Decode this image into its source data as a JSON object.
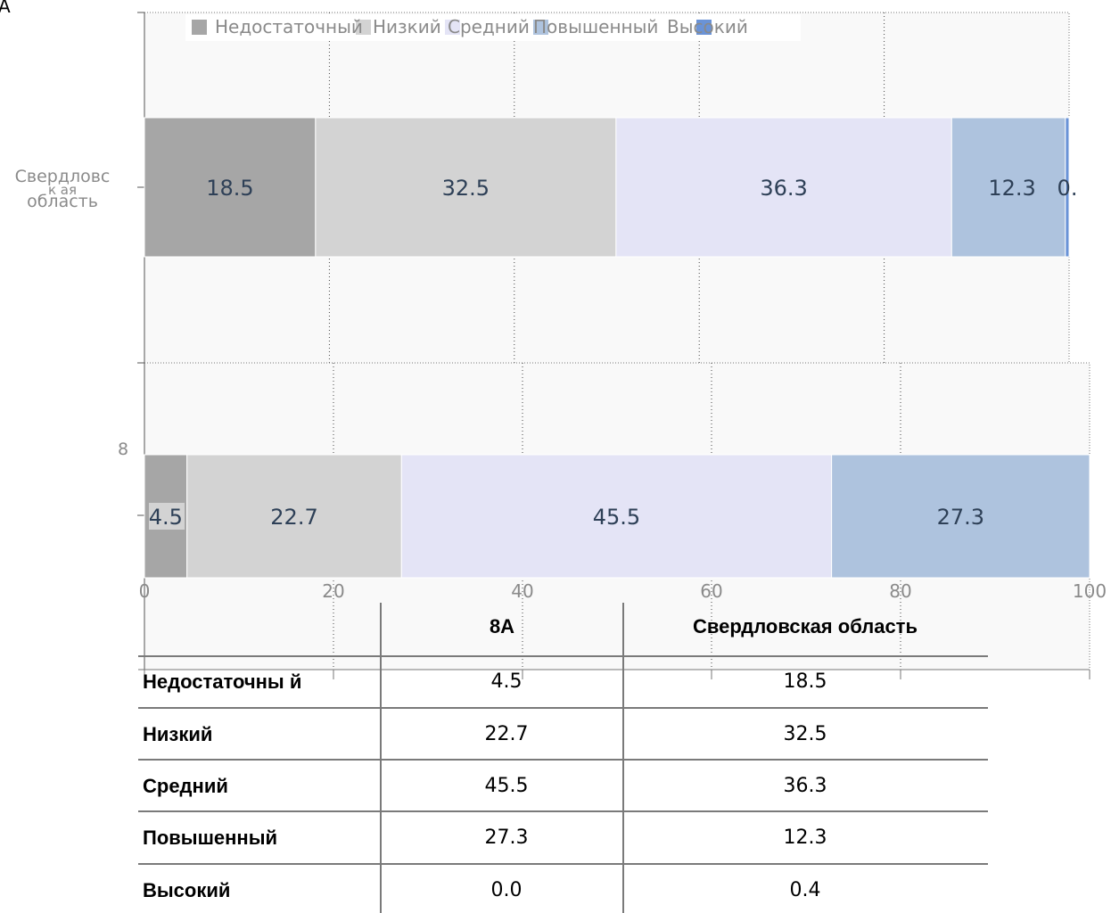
{
  "chart_data": {
    "type": "bar",
    "orientation": "horizontal",
    "stacked": true,
    "corner_label": "А",
    "categories": [
      "Свердловская область",
      "8"
    ],
    "category_labels": [
      [
        "Свердловс",
        "к ая",
        "область"
      ],
      [
        "8"
      ]
    ],
    "series": [
      {
        "name": "Недостаточный",
        "values": [
          18.5,
          4.5
        ],
        "color": "#a6a6a6",
        "labels": [
          "18.5",
          "4.5"
        ]
      },
      {
        "name": "Низкий",
        "values": [
          32.5,
          22.7
        ],
        "color": "#d3d3d3",
        "labels": [
          "32.5",
          "22.7"
        ]
      },
      {
        "name": "Средний",
        "values": [
          36.3,
          45.5
        ],
        "color": "#e4e4f6",
        "labels": [
          "36.3",
          "45.5"
        ]
      },
      {
        "name": "Повышенный",
        "values": [
          12.3,
          27.3
        ],
        "color": "#aec3de",
        "labels": [
          "12.3",
          "27.3"
        ]
      },
      {
        "name": "Высокий",
        "values": [
          0.4,
          0.0
        ],
        "color": "#6a93d7",
        "labels": [
          "0.",
          ""
        ]
      }
    ],
    "xlim": [
      0,
      100
    ],
    "xticks": [
      "0",
      "20",
      "40",
      "60",
      "80",
      "100"
    ],
    "grid": true,
    "legend": "top",
    "label_color": "#2e4057",
    "axis_text_color": "#8a8a8a"
  },
  "table": {
    "columns": [
      "",
      "8А",
      "Свердловская  область"
    ],
    "rows": [
      {
        "label": "Недостаточны й",
        "a": "4.5",
        "b": "18.5"
      },
      {
        "label": "Низкий",
        "a": "22.7",
        "b": "32.5"
      },
      {
        "label": "Средний",
        "a": "45.5",
        "b": "36.3"
      },
      {
        "label": "Повышенный",
        "a": "27.3",
        "b": "12.3"
      },
      {
        "label": "Высокий",
        "a": "0.0",
        "b": "0.4"
      }
    ]
  }
}
